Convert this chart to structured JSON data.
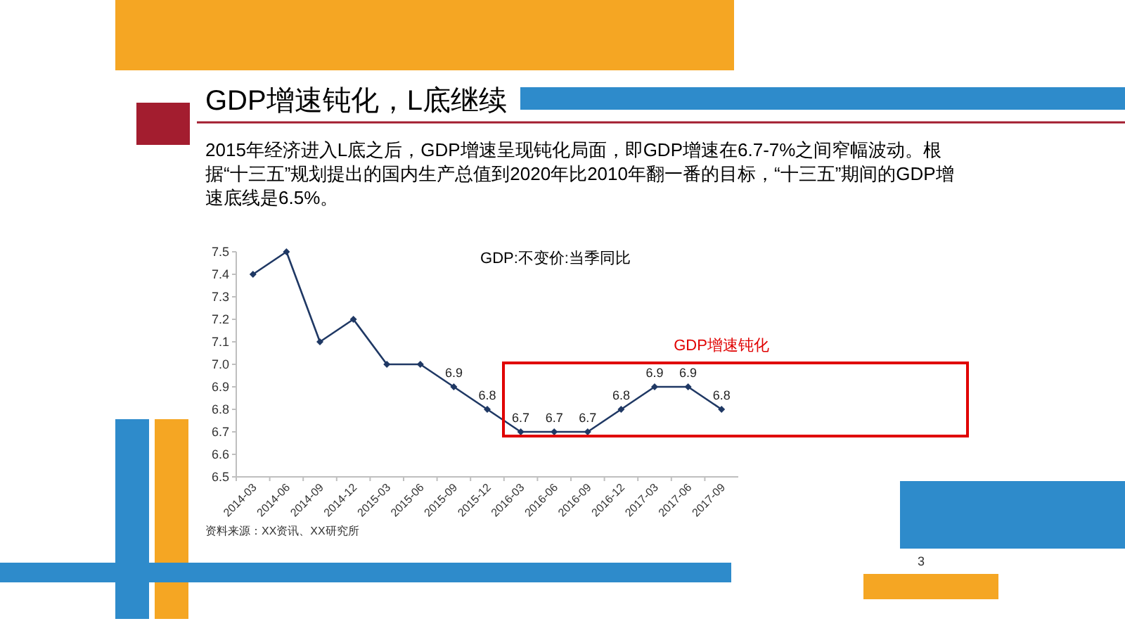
{
  "chart_data": {
    "type": "line",
    "title": "GDP增速钝化，L底继续",
    "subtitle": "2015年经济进入L底之后，GDP增速呈现钝化局面，即GDP增速在6.7-7%之间窄幅波动。根据“十三五”规划提出的国内生产总值到2020年比2010年翻一番的目标，“十三五”期间的GDP增速底线是6.5%。",
    "categories": [
      "2014-03",
      "2014-06",
      "2014-09",
      "2014-12",
      "2015-03",
      "2015-06",
      "2015-09",
      "2015-12",
      "2016-03",
      "2016-06",
      "2016-09",
      "2016-12",
      "2017-03",
      "2017-06",
      "2017-09"
    ],
    "values": [
      7.4,
      7.5,
      7.1,
      7.2,
      7.0,
      7.0,
      6.9,
      6.8,
      6.7,
      6.7,
      6.7,
      6.8,
      6.9,
      6.9,
      6.8
    ],
    "value_labels": [
      null,
      null,
      null,
      null,
      null,
      null,
      "6.9",
      "6.8",
      "6.7",
      "6.7",
      "6.7",
      "6.8",
      "6.9",
      "6.9",
      "6.8"
    ],
    "color": "#1f3864",
    "marker": "diamond",
    "ylim": [
      6.5,
      7.5
    ],
    "yticks": [
      {
        "value": 6.5,
        "label": "6.5"
      },
      6.6,
      6.7,
      6.8,
      6.9,
      {
        "value": 7,
        "label": "7.0"
      },
      7.1,
      7.2,
      7.3,
      7.4,
      7.5
    ],
    "annotations": [
      "GDP:不变价:当季同比",
      "GDP增速钝化",
      "资料来源：XX资讯、XX研究所",
      "3"
    ]
  }
}
